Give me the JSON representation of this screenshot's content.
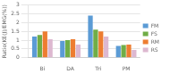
{
  "chart_data": {
    "type": "bar",
    "categories": [
      "Bi",
      "DA",
      "Tri",
      "PM"
    ],
    "series": [
      {
        "name": "FM",
        "color": "#5b9bd5",
        "values": [
          1.2,
          0.95,
          2.4,
          0.68
        ]
      },
      {
        "name": "FS",
        "color": "#70ad47",
        "values": [
          1.3,
          1.0,
          1.6,
          0.72
        ]
      },
      {
        "name": "RM",
        "color": "#ed7d31",
        "values": [
          1.5,
          1.05,
          1.5,
          0.75
        ]
      },
      {
        "name": "RS",
        "color": "#ddb8d0",
        "values": [
          1.05,
          0.75,
          1.2,
          0.45
        ]
      }
    ],
    "ylabel": "Ratio(KE(J)/EMG(%))",
    "ylim": [
      0,
      3
    ],
    "yticks": [
      0,
      0.5,
      1,
      1.5,
      2,
      2.5,
      3
    ],
    "grid": true,
    "legend": "right"
  }
}
